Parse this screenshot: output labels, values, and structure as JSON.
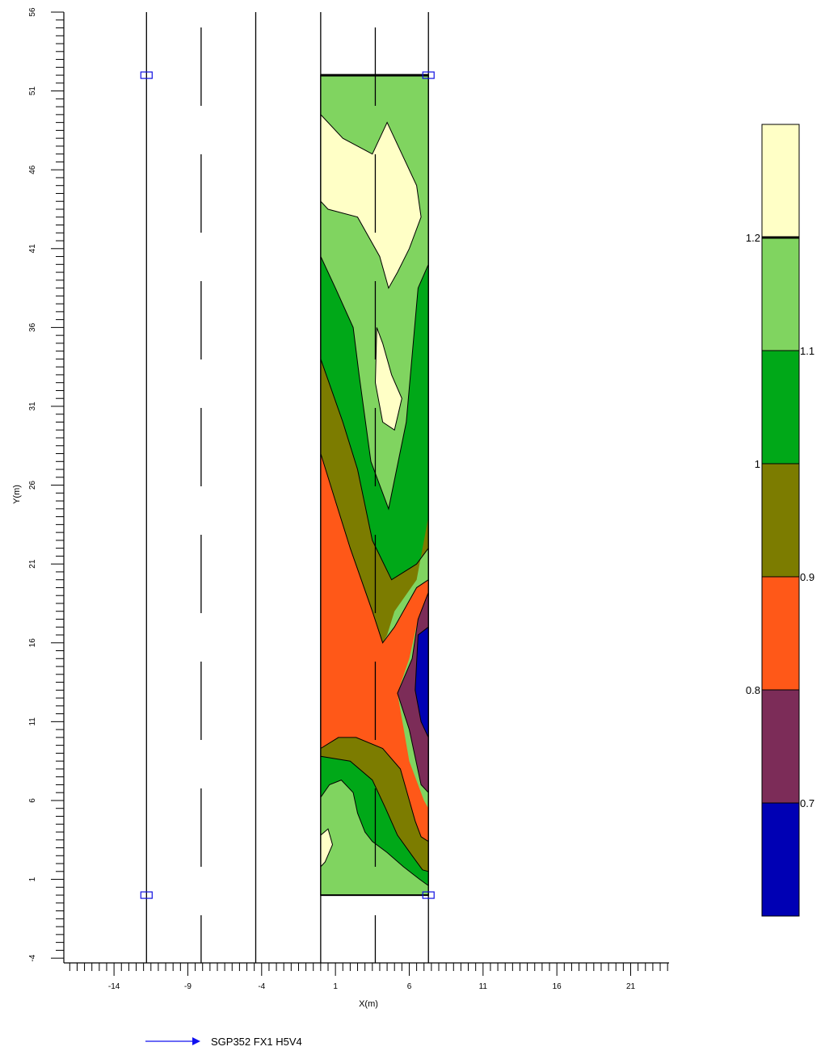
{
  "chart_data": {
    "type": "contour",
    "xlabel": "X(m)",
    "ylabel": "Y(m)",
    "xlim": [
      -17.4,
      23.6
    ],
    "ylim": [
      -4.3,
      56
    ],
    "x_ticks": [
      -14,
      -9,
      -4,
      1,
      6,
      11,
      16,
      21
    ],
    "y_ticks": [
      -4,
      1,
      6,
      11,
      16,
      21,
      26,
      31,
      36,
      41,
      46,
      51,
      56
    ],
    "grid_region": {
      "x": [
        0,
        7.3
      ],
      "y": [
        0,
        52
      ]
    },
    "survey_lines": [
      {
        "x": -11.8,
        "style": "solid"
      },
      {
        "x": -8.1,
        "style": "dashed"
      },
      {
        "x": -4.4,
        "style": "solid"
      },
      {
        "x": 0,
        "style": "solid"
      },
      {
        "x": 3.7,
        "style": "dashed"
      },
      {
        "x": 7.3,
        "style": "solid"
      }
    ],
    "corner_markers": [
      [
        -11.8,
        52
      ],
      [
        7.3,
        52
      ],
      [
        -11.8,
        0
      ],
      [
        7.3,
        0
      ]
    ],
    "contour_levels": [
      0.7,
      0.8,
      0.9,
      1.0,
      1.1,
      1.2
    ],
    "legend": {
      "labels_left": [
        "1.2",
        "1",
        "0.8"
      ],
      "labels_right": [
        "1.1",
        "0.9",
        "0.7"
      ],
      "bands": [
        {
          "range": "> 1.2",
          "color": "#ffffc6"
        },
        {
          "range": "1.1 - 1.2",
          "color": "#80d460"
        },
        {
          "range": "1.0 - 1.1",
          "color": "#00a818"
        },
        {
          "range": "0.9 - 1.0",
          "color": "#7c7c00"
        },
        {
          "range": "0.8 - 0.9",
          "color": "#ff5818"
        },
        {
          "range": "0.7 - 0.8",
          "color": "#7c2c58"
        },
        {
          "range": "< 0.7",
          "color": "#0000b4"
        }
      ]
    },
    "regions": [
      {
        "fill": "#80d460",
        "points": [
          [
            0,
            0
          ],
          [
            7.3,
            0
          ],
          [
            7.3,
            52
          ],
          [
            0,
            52
          ]
        ]
      },
      {
        "fill": "#ffffc6",
        "points": [
          [
            0,
            49.5
          ],
          [
            1.5,
            48
          ],
          [
            3.5,
            47
          ],
          [
            4.5,
            49
          ],
          [
            6.5,
            45
          ],
          [
            6.8,
            43
          ],
          [
            6,
            41
          ],
          [
            5.2,
            39.5
          ],
          [
            4.6,
            38.5
          ],
          [
            4,
            40.5
          ],
          [
            2.5,
            43
          ],
          [
            0.5,
            43.5
          ],
          [
            0,
            44
          ]
        ]
      },
      {
        "fill": "#00a818",
        "points": [
          [
            0,
            40.5
          ],
          [
            1,
            38.5
          ],
          [
            2.2,
            36
          ],
          [
            2.6,
            33
          ],
          [
            3.4,
            27.5
          ],
          [
            4.6,
            24.5
          ],
          [
            5.8,
            30
          ],
          [
            6.6,
            38.5
          ],
          [
            7.3,
            40
          ],
          [
            7.3,
            22
          ],
          [
            6.5,
            21
          ],
          [
            4.8,
            20
          ],
          [
            3.5,
            22.5
          ],
          [
            2,
            26
          ],
          [
            0,
            34
          ]
        ]
      },
      {
        "fill": "#ffffc6",
        "points": [
          [
            3.8,
            36
          ],
          [
            4.2,
            35
          ],
          [
            4.8,
            33
          ],
          [
            5.5,
            31.5
          ],
          [
            5,
            29.5
          ],
          [
            4.2,
            30
          ],
          [
            3.7,
            32.5
          ]
        ]
      },
      {
        "fill": "#7c7c00",
        "points": [
          [
            0,
            34
          ],
          [
            1.5,
            30
          ],
          [
            2.5,
            27
          ],
          [
            3.5,
            22.5
          ],
          [
            4.8,
            20
          ],
          [
            6.5,
            21
          ],
          [
            7.3,
            22
          ],
          [
            7.3,
            35
          ],
          [
            7.3,
            24
          ],
          [
            6.5,
            20
          ],
          [
            5,
            18
          ],
          [
            4.5,
            16.5
          ],
          [
            4.2,
            16
          ],
          [
            3.5,
            18
          ],
          [
            2,
            22
          ],
          [
            1,
            25
          ],
          [
            0,
            28
          ]
        ]
      },
      {
        "fill": "#ff5818",
        "points": [
          [
            0,
            28
          ],
          [
            1,
            25
          ],
          [
            2,
            22
          ],
          [
            3.5,
            18
          ],
          [
            4.2,
            16
          ],
          [
            5,
            17
          ],
          [
            6.5,
            19.5
          ],
          [
            7.3,
            20
          ],
          [
            7.3,
            19
          ],
          [
            6.6,
            17.5
          ],
          [
            6,
            15
          ],
          [
            5.2,
            12.8
          ],
          [
            6,
            8.5
          ],
          [
            7,
            6
          ],
          [
            7.3,
            5.5
          ],
          [
            7.3,
            3.4
          ],
          [
            6.8,
            3.7
          ],
          [
            6.4,
            4.7
          ],
          [
            5.4,
            8
          ],
          [
            4.2,
            9.3
          ],
          [
            2.4,
            10
          ],
          [
            1.2,
            10
          ],
          [
            0,
            9.3
          ]
        ]
      },
      {
        "fill": "#7c2c58",
        "points": [
          [
            7.3,
            19.2
          ],
          [
            6.6,
            17.5
          ],
          [
            6.2,
            15
          ],
          [
            5.2,
            12.8
          ],
          [
            6,
            10.5
          ],
          [
            6.8,
            7
          ],
          [
            7.3,
            6.5
          ]
        ]
      },
      {
        "fill": "#0000b4",
        "points": [
          [
            7.3,
            17
          ],
          [
            6.6,
            16.5
          ],
          [
            6.4,
            13
          ],
          [
            6.8,
            11
          ],
          [
            7.3,
            10
          ]
        ]
      },
      {
        "fill": "#7c7c00",
        "points": [
          [
            0,
            9.3
          ],
          [
            1.2,
            10
          ],
          [
            2.4,
            10
          ],
          [
            4.2,
            9.3
          ],
          [
            5.4,
            8
          ],
          [
            6.4,
            4.7
          ],
          [
            6.8,
            3.7
          ],
          [
            7.3,
            3.4
          ],
          [
            7.3,
            1.5
          ],
          [
            6.9,
            1.6
          ],
          [
            6.2,
            2.5
          ],
          [
            5.2,
            3.8
          ],
          [
            4.4,
            5.5
          ],
          [
            3.5,
            7.3
          ],
          [
            2,
            8.5
          ],
          [
            0,
            8.8
          ]
        ]
      },
      {
        "fill": "#00a818",
        "points": [
          [
            0,
            8.8
          ],
          [
            2,
            8.5
          ],
          [
            3.5,
            7.3
          ],
          [
            4.4,
            5.5
          ],
          [
            5.2,
            3.8
          ],
          [
            6.2,
            2.5
          ],
          [
            6.9,
            1.6
          ],
          [
            7.3,
            1.5
          ],
          [
            7.3,
            0.6
          ],
          [
            6.7,
            1.0
          ],
          [
            5.6,
            1.8
          ],
          [
            4.5,
            2.7
          ],
          [
            3.5,
            3.4
          ],
          [
            3,
            4
          ],
          [
            2.5,
            5.2
          ],
          [
            2.2,
            6.5
          ],
          [
            1.4,
            7.3
          ],
          [
            0.6,
            7
          ],
          [
            0,
            6.2
          ]
        ]
      },
      {
        "fill": "#ffffc6",
        "points": [
          [
            0,
            3.8
          ],
          [
            0.5,
            4.2
          ],
          [
            0.8,
            3.2
          ],
          [
            0.3,
            2.1
          ],
          [
            0,
            1.8
          ]
        ]
      }
    ],
    "contour_lines": [
      [
        [
          0,
          49.5
        ],
        [
          1.5,
          48
        ],
        [
          3.5,
          47
        ],
        [
          4.5,
          49
        ],
        [
          6.5,
          45
        ],
        [
          6.8,
          43
        ],
        [
          6,
          41
        ],
        [
          5.2,
          39.5
        ],
        [
          4.6,
          38.5
        ],
        [
          4,
          40.5
        ],
        [
          2.5,
          43
        ],
        [
          0.5,
          43.5
        ],
        [
          0,
          44
        ]
      ],
      [
        [
          0,
          40.5
        ],
        [
          1,
          38.5
        ],
        [
          2.2,
          36
        ],
        [
          2.6,
          33
        ],
        [
          3.4,
          27.5
        ],
        [
          4.6,
          24.5
        ],
        [
          5.8,
          30
        ],
        [
          6.6,
          38.5
        ],
        [
          7.3,
          40
        ]
      ],
      [
        [
          0,
          34
        ],
        [
          1.5,
          30
        ],
        [
          2.5,
          27
        ],
        [
          3.5,
          22.5
        ],
        [
          4.8,
          20
        ],
        [
          6.5,
          21
        ],
        [
          7.3,
          22
        ]
      ],
      [
        [
          0,
          28
        ],
        [
          1,
          25
        ],
        [
          2,
          22
        ],
        [
          3.5,
          18
        ],
        [
          4.2,
          16
        ],
        [
          5,
          17
        ],
        [
          6.5,
          19.5
        ],
        [
          7.3,
          20
        ]
      ],
      [
        [
          7.3,
          19.2
        ],
        [
          6.6,
          17.5
        ],
        [
          6.2,
          15
        ],
        [
          5.2,
          12.8
        ],
        [
          6,
          10.5
        ],
        [
          6.8,
          7
        ],
        [
          7.3,
          6.5
        ]
      ],
      [
        [
          7.3,
          17
        ],
        [
          6.6,
          16.5
        ],
        [
          6.4,
          13
        ],
        [
          6.8,
          11
        ],
        [
          7.3,
          10
        ]
      ],
      [
        [
          0,
          9.3
        ],
        [
          1.2,
          10
        ],
        [
          2.4,
          10
        ],
        [
          4.2,
          9.3
        ],
        [
          5.4,
          8
        ],
        [
          6.4,
          4.7
        ],
        [
          6.8,
          3.7
        ],
        [
          7.3,
          3.4
        ]
      ],
      [
        [
          0,
          8.8
        ],
        [
          2,
          8.5
        ],
        [
          3.5,
          7.3
        ],
        [
          4.4,
          5.5
        ],
        [
          5.2,
          3.8
        ],
        [
          6.2,
          2.5
        ],
        [
          6.9,
          1.6
        ],
        [
          7.3,
          1.5
        ]
      ],
      [
        [
          0,
          6.2
        ],
        [
          0.6,
          7
        ],
        [
          1.4,
          7.3
        ],
        [
          2.2,
          6.5
        ],
        [
          2.5,
          5.2
        ],
        [
          3,
          4
        ],
        [
          3.5,
          3.4
        ],
        [
          4.5,
          2.7
        ],
        [
          5.6,
          1.8
        ],
        [
          6.7,
          1.0
        ],
        [
          7.3,
          0.6
        ]
      ],
      [
        [
          0,
          3.8
        ],
        [
          0.5,
          4.2
        ],
        [
          0.8,
          3.2
        ],
        [
          0.3,
          2.1
        ],
        [
          0,
          1.8
        ]
      ],
      [
        [
          3.8,
          36
        ],
        [
          4.2,
          35
        ],
        [
          4.8,
          33
        ],
        [
          5.5,
          31.5
        ],
        [
          5,
          29.5
        ],
        [
          4.2,
          30
        ],
        [
          3.7,
          32.5
        ],
        [
          3.8,
          36
        ]
      ]
    ]
  },
  "key": {
    "label": "SGP352 FX1 H5V4",
    "color": "#1010f0"
  }
}
